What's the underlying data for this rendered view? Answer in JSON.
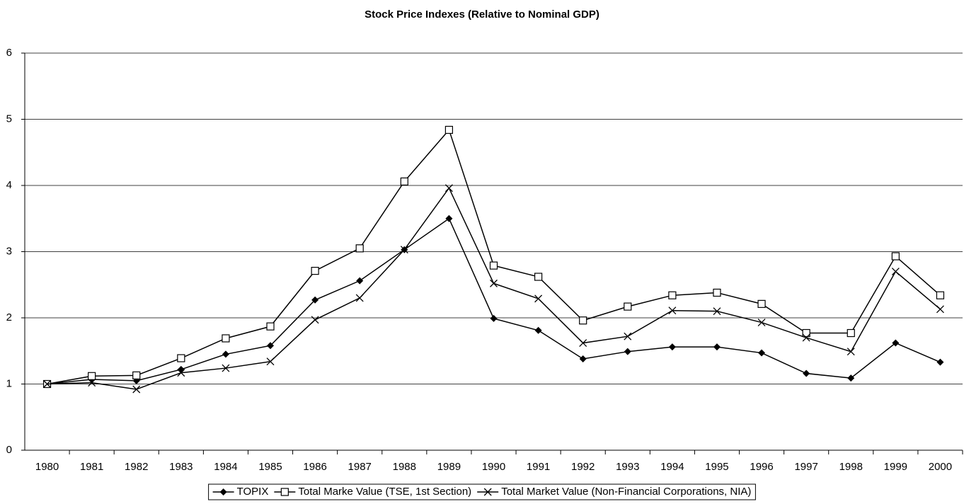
{
  "chart_data": {
    "type": "line",
    "title": "Stock Price Indexes (Relative to Nominal GDP)",
    "categories": [
      "1980",
      "1981",
      "1982",
      "1983",
      "1984",
      "1985",
      "1986",
      "1987",
      "1988",
      "1989",
      "1990",
      "1991",
      "1992",
      "1993",
      "1994",
      "1995",
      "1996",
      "1997",
      "1998",
      "1999",
      "2000"
    ],
    "series": [
      {
        "name": "TOPIX",
        "color": "#000000",
        "marker": "diamond",
        "values": [
          1.0,
          1.07,
          1.05,
          1.22,
          1.45,
          1.58,
          2.27,
          2.56,
          3.03,
          3.5,
          1.99,
          1.81,
          1.38,
          1.49,
          1.56,
          1.56,
          1.47,
          1.16,
          1.09,
          1.62,
          1.33
        ]
      },
      {
        "name": "Total Marke Value (TSE, 1st Section)",
        "color": "#000000",
        "marker": "square",
        "values": [
          1.0,
          1.12,
          1.13,
          1.39,
          1.69,
          1.87,
          2.71,
          3.05,
          4.06,
          4.84,
          2.79,
          2.62,
          1.96,
          2.17,
          2.34,
          2.38,
          2.21,
          1.77,
          1.77,
          2.93,
          2.34
        ]
      },
      {
        "name": "Total Market Value (Non-Financial Corporations, NIA)",
        "color": "#000000",
        "marker": "x",
        "values": [
          1.0,
          1.02,
          0.92,
          1.17,
          1.24,
          1.34,
          1.97,
          2.3,
          3.03,
          3.96,
          2.52,
          2.29,
          1.62,
          1.72,
          2.11,
          2.1,
          1.93,
          1.7,
          1.49,
          2.7,
          2.13
        ]
      }
    ],
    "ylim": [
      0,
      6
    ],
    "yticks": [
      0,
      1,
      2,
      3,
      4,
      5,
      6
    ],
    "grid": true,
    "legend": "bottom"
  }
}
